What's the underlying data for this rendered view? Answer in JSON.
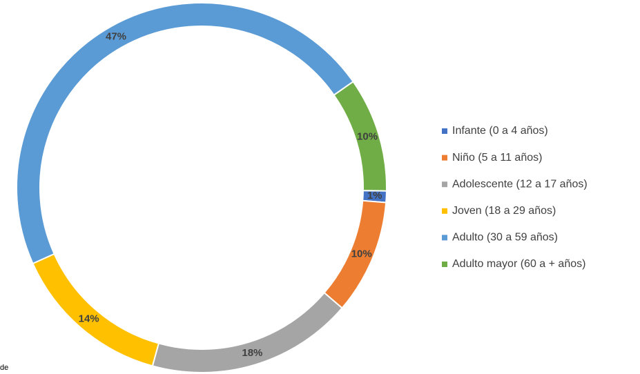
{
  "chart_data": {
    "type": "doughnut",
    "categories": [
      "Infante (0 a 4 años)",
      "Niño (5 a 11 años)",
      "Adolescente (12 a 17 años)",
      "Joven (18 a 29 años)",
      "Adulto (30 a 59 años)",
      "Adulto mayor (60 a + años)"
    ],
    "values": [
      1,
      10,
      18,
      14,
      47,
      10
    ],
    "value_labels": [
      "1%",
      "10%",
      "18%",
      "14%",
      "47%",
      "10%"
    ],
    "colors": [
      "#4472c4",
      "#ed7d31",
      "#a5a5a5",
      "#ffc000",
      "#5b9bd5",
      "#70ad47"
    ],
    "legend": "right",
    "annotations": [
      "de"
    ]
  }
}
